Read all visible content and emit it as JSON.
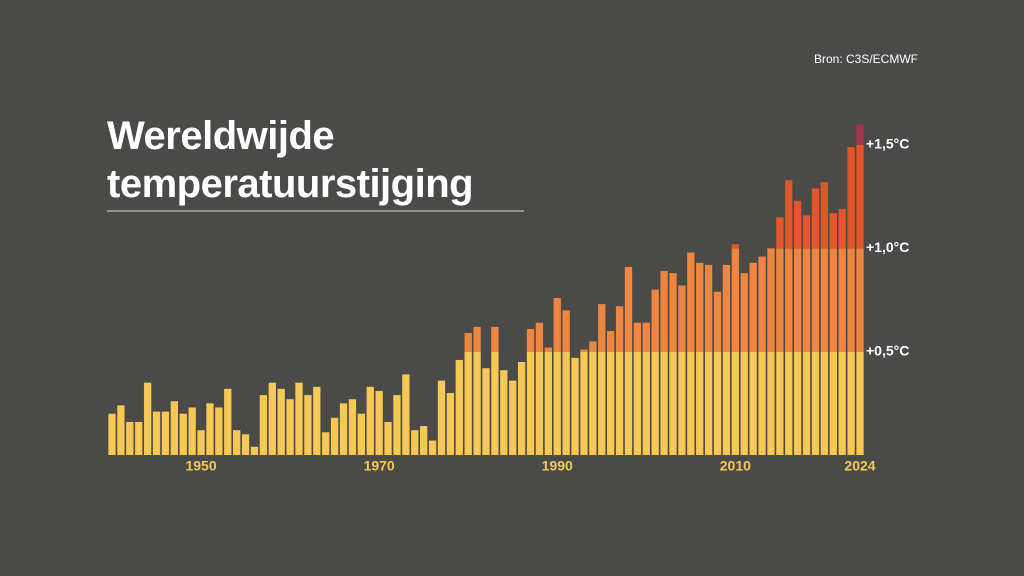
{
  "chart_data": {
    "type": "bar",
    "title": "Wereldwijde temperatuurstijging",
    "source": "Bron: C3S/ECMWF",
    "x": [
      1940,
      1941,
      1942,
      1943,
      1944,
      1945,
      1946,
      1947,
      1948,
      1949,
      1950,
      1951,
      1952,
      1953,
      1954,
      1955,
      1956,
      1957,
      1958,
      1959,
      1960,
      1961,
      1962,
      1963,
      1964,
      1965,
      1966,
      1967,
      1968,
      1969,
      1970,
      1971,
      1972,
      1973,
      1974,
      1975,
      1976,
      1977,
      1978,
      1979,
      1980,
      1981,
      1982,
      1983,
      1984,
      1985,
      1986,
      1987,
      1988,
      1989,
      1990,
      1991,
      1992,
      1993,
      1994,
      1995,
      1996,
      1997,
      1998,
      1999,
      2000,
      2001,
      2002,
      2003,
      2004,
      2005,
      2006,
      2007,
      2008,
      2009,
      2010,
      2011,
      2012,
      2013,
      2014,
      2015,
      2016,
      2017,
      2018,
      2019,
      2020,
      2021,
      2022,
      2023,
      2024
    ],
    "values": [
      0.2,
      0.24,
      0.16,
      0.16,
      0.35,
      0.21,
      0.21,
      0.26,
      0.2,
      0.23,
      0.12,
      0.25,
      0.23,
      0.32,
      0.12,
      0.1,
      0.04,
      0.29,
      0.35,
      0.32,
      0.27,
      0.35,
      0.29,
      0.33,
      0.11,
      0.18,
      0.25,
      0.27,
      0.2,
      0.33,
      0.31,
      0.16,
      0.29,
      0.39,
      0.12,
      0.14,
      0.07,
      0.36,
      0.3,
      0.46,
      0.59,
      0.62,
      0.42,
      0.62,
      0.41,
      0.36,
      0.45,
      0.61,
      0.64,
      0.52,
      0.76,
      0.7,
      0.47,
      0.51,
      0.55,
      0.73,
      0.6,
      0.72,
      0.91,
      0.64,
      0.64,
      0.8,
      0.89,
      0.88,
      0.82,
      0.98,
      0.93,
      0.92,
      0.79,
      0.92,
      1.02,
      0.88,
      0.93,
      0.96,
      1.0,
      1.15,
      1.33,
      1.23,
      1.16,
      1.29,
      1.32,
      1.17,
      1.19,
      1.49,
      1.6
    ],
    "xlim": [
      1940,
      2024
    ],
    "xticks": [
      1950,
      1970,
      1990,
      2010,
      2024
    ],
    "ylim": [
      0,
      1.5
    ],
    "yticks": [
      {
        "value": 0.5,
        "label": "+0,5°C"
      },
      {
        "value": 1.0,
        "label": "+1,0°C"
      },
      {
        "value": 1.5,
        "label": "+1,5°C"
      }
    ],
    "band_colors": [
      "#f6c955",
      "#ef8640",
      "#e3552a",
      "#a7324b"
    ],
    "x_label_color": "#f6c955"
  }
}
